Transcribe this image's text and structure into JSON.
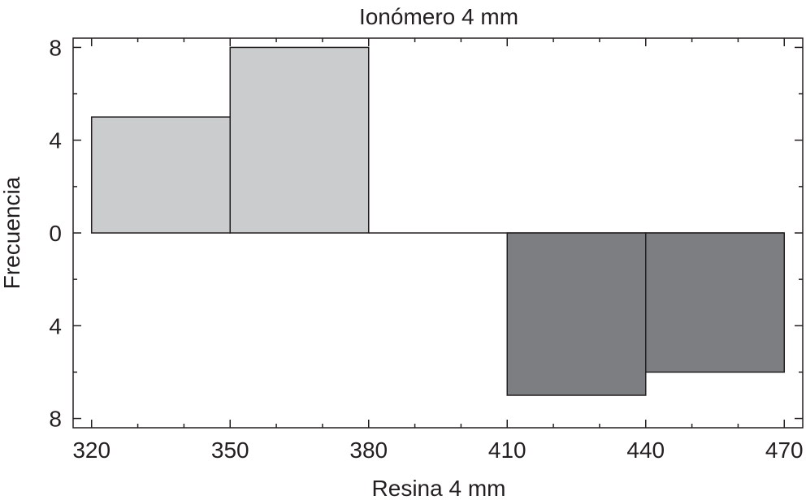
{
  "chart_data": {
    "type": "bar",
    "subtype": "back-to-back histogram",
    "title": "Ionómero 4 mm",
    "xlabel": "Resina 4 mm",
    "ylabel": "Frecuencia",
    "xlim": [
      316,
      474
    ],
    "xticks": [
      320,
      350,
      380,
      410,
      440,
      470
    ],
    "yticks": [
      8,
      4,
      0,
      4,
      8
    ],
    "yticks_signed": [
      8,
      4,
      0,
      -4,
      -8
    ],
    "ylim": [
      -8.4,
      8.4
    ],
    "grid": false,
    "series": [
      {
        "name": "Ionómero 4 mm",
        "direction": "up",
        "color": "#cbcccd",
        "bins": [
          {
            "from": 320,
            "to": 350,
            "value": 5
          },
          {
            "from": 350,
            "to": 380,
            "value": 8
          },
          {
            "from": 380,
            "to": 410,
            "value": 0
          },
          {
            "from": 410,
            "to": 440,
            "value": 0
          },
          {
            "from": 440,
            "to": 470,
            "value": 0
          }
        ]
      },
      {
        "name": "Resina 4 mm",
        "direction": "down",
        "color": "#7d7e82",
        "bins": [
          {
            "from": 320,
            "to": 350,
            "value": 0
          },
          {
            "from": 350,
            "to": 380,
            "value": 0
          },
          {
            "from": 380,
            "to": 410,
            "value": 0
          },
          {
            "from": 410,
            "to": 440,
            "value": 7
          },
          {
            "from": 440,
            "to": 470,
            "value": 6
          }
        ]
      }
    ],
    "colors": {
      "axis": "#231f20",
      "background": "#ffffff"
    }
  }
}
